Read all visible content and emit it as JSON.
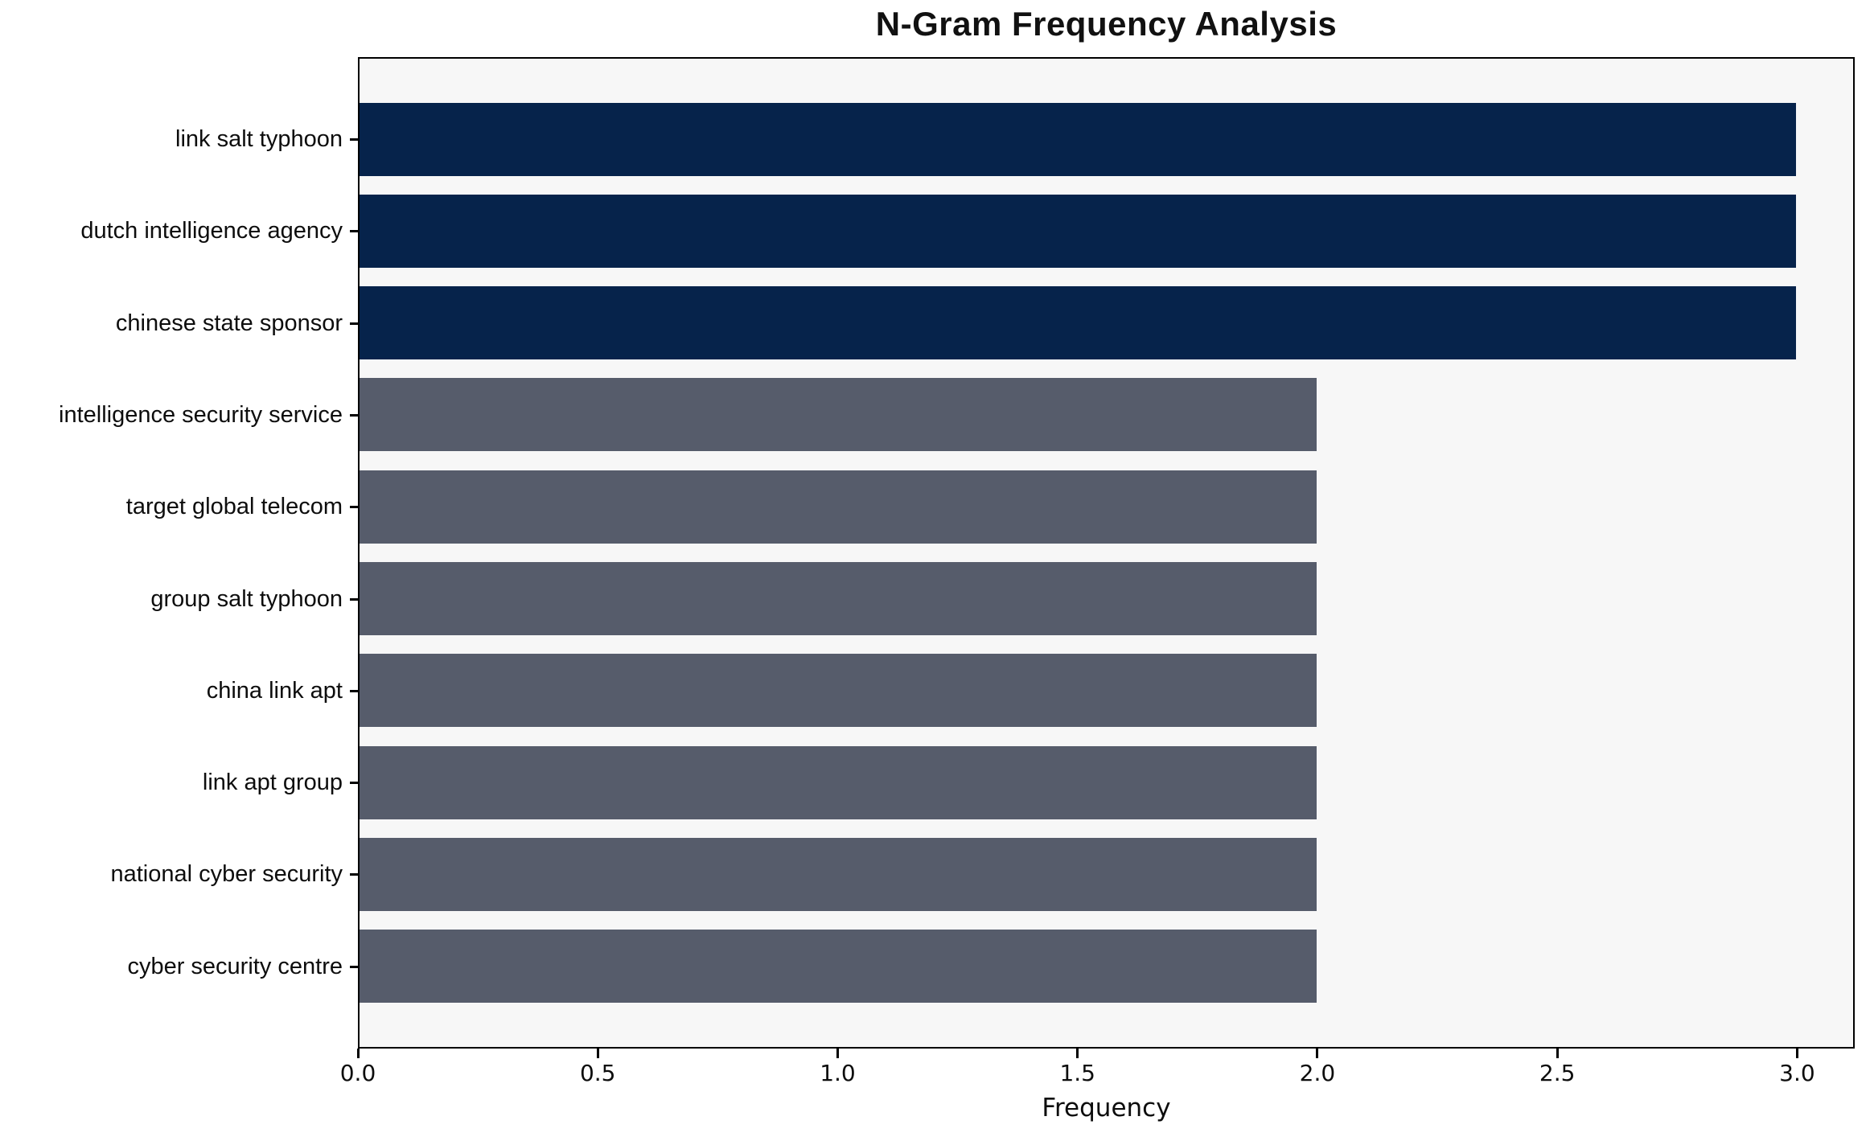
{
  "figure": {
    "background_color": "#ffffff",
    "plot_background_color": "#f7f7f7",
    "spine_color": "#000000"
  },
  "chart_data": {
    "type": "bar",
    "orientation": "horizontal",
    "title": "N-Gram Frequency Analysis",
    "xlabel": "Frequency",
    "ylabel": "",
    "categories": [
      "link salt typhoon",
      "dutch intelligence agency",
      "chinese state sponsor",
      "intelligence security service",
      "target global telecom",
      "group salt typhoon",
      "china link apt",
      "link apt group",
      "national cyber security",
      "cyber security centre"
    ],
    "values": [
      3,
      3,
      3,
      2,
      2,
      2,
      2,
      2,
      2,
      2
    ],
    "bar_colors": [
      "#06234b",
      "#06234b",
      "#06234b",
      "#565c6b",
      "#565c6b",
      "#565c6b",
      "#565c6b",
      "#565c6b",
      "#565c6b",
      "#565c6b"
    ],
    "xlim": [
      0,
      3.12
    ],
    "xticks": [
      0.0,
      0.5,
      1.0,
      1.5,
      2.0,
      2.5,
      3.0
    ],
    "xtick_labels": [
      "0.0",
      "0.5",
      "1.0",
      "1.5",
      "2.0",
      "2.5",
      "3.0"
    ],
    "grid": false,
    "legend": null
  }
}
